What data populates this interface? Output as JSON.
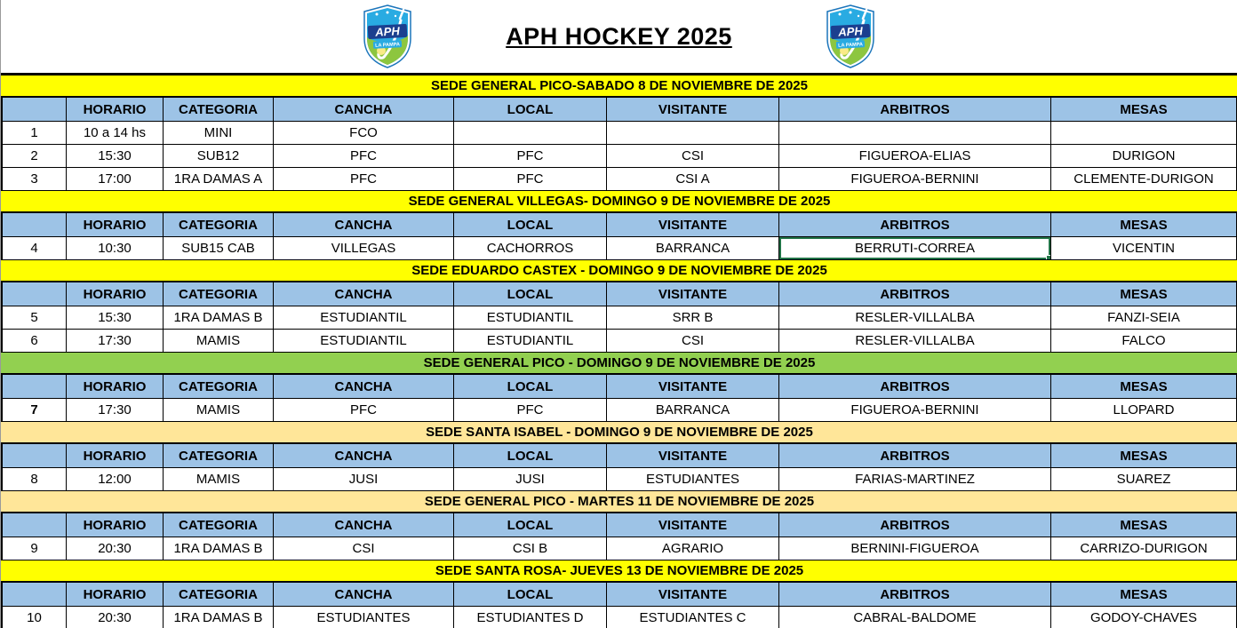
{
  "title": "APH HOCKEY 2025",
  "logo": {
    "text": "APH",
    "subtext": "LA PAMPA"
  },
  "colors": {
    "column_header_blue": "#9DC3E6",
    "section_yellow": "#FFFF00",
    "section_green": "#92D050",
    "section_tan": "#FFE699",
    "selection_border_green": "#217346"
  },
  "columns": [
    "",
    "HORARIO",
    "CATEGORIA",
    "CANCHA",
    "LOCAL",
    "VISITANTE",
    "ARBITROS",
    "MESAS"
  ],
  "sections": [
    {
      "title": "SEDE GENERAL PICO-SABADO 8 DE NOVIEMBRE DE 2025",
      "color": "yellow",
      "rows": [
        {
          "num": "1",
          "horario": "10 a 14 hs",
          "categoria": "MINI",
          "cancha": "FCO",
          "local": "",
          "visitante": "",
          "arbitros": "",
          "mesas": ""
        },
        {
          "num": "2",
          "horario": "15:30",
          "categoria": "SUB12",
          "cancha": "PFC",
          "local": "PFC",
          "visitante": "CSI",
          "arbitros": "FIGUEROA-ELIAS",
          "mesas": "DURIGON"
        },
        {
          "num": "3",
          "horario": "17:00",
          "categoria": "1RA DAMAS A",
          "cancha": "PFC",
          "local": "PFC",
          "visitante": "CSI A",
          "arbitros": "FIGUEROA-BERNINI",
          "mesas": "CLEMENTE-DURIGON"
        }
      ]
    },
    {
      "title": "SEDE GENERAL VILLEGAS- DOMINGO 9 DE NOVIEMBRE DE 2025",
      "color": "yellow",
      "rows": [
        {
          "num": "4",
          "horario": "10:30",
          "categoria": "SUB15 CAB",
          "cancha": "VILLEGAS",
          "local": "CACHORROS",
          "visitante": "BARRANCA",
          "arbitros": "BERRUTI-CORREA",
          "mesas": "VICENTIN",
          "selected": "arbitros"
        }
      ]
    },
    {
      "title": "SEDE EDUARDO CASTEX - DOMINGO 9 DE NOVIEMBRE DE 2025",
      "color": "yellow",
      "rows": [
        {
          "num": "5",
          "horario": "15:30",
          "categoria": "1RA DAMAS B",
          "cancha": "ESTUDIANTIL",
          "local": "ESTUDIANTIL",
          "visitante": "SRR B",
          "arbitros": "RESLER-VILLALBA",
          "mesas": "FANZI-SEIA"
        },
        {
          "num": "6",
          "horario": "17:30",
          "categoria": "MAMIS",
          "cancha": "ESTUDIANTIL",
          "local": "ESTUDIANTIL",
          "visitante": "CSI",
          "arbitros": "RESLER-VILLALBA",
          "mesas": "FALCO"
        }
      ]
    },
    {
      "title": "SEDE GENERAL PICO - DOMINGO 9 DE NOVIEMBRE DE 2025",
      "color": "green",
      "rows": [
        {
          "num": "7",
          "bold_num": true,
          "horario": "17:30",
          "categoria": "MAMIS",
          "cancha": "PFC",
          "local": "PFC",
          "visitante": "BARRANCA",
          "arbitros": "FIGUEROA-BERNINI",
          "mesas": "LLOPARD"
        }
      ]
    },
    {
      "title": "SEDE SANTA ISABEL - DOMINGO 9 DE NOVIEMBRE DE 2025",
      "color": "tan",
      "rows": [
        {
          "num": "8",
          "horario": "12:00",
          "categoria": "MAMIS",
          "cancha": "JUSI",
          "local": "JUSI",
          "visitante": "ESTUDIANTES",
          "arbitros": "FARIAS-MARTINEZ",
          "mesas": "SUAREZ"
        }
      ]
    },
    {
      "title": "SEDE GENERAL PICO - MARTES 11 DE NOVIEMBRE DE 2025",
      "color": "tan",
      "rows": [
        {
          "num": "9",
          "horario": "20:30",
          "categoria": "1RA DAMAS B",
          "cancha": "CSI",
          "local": "CSI B",
          "visitante": "AGRARIO",
          "arbitros": "BERNINI-FIGUEROA",
          "mesas": "CARRIZO-DURIGON"
        }
      ]
    },
    {
      "title": "SEDE SANTA ROSA- JUEVES 13 DE NOVIEMBRE DE 2025",
      "color": "yellow",
      "rows": [
        {
          "num": "10",
          "horario": "20:30",
          "categoria": "1RA DAMAS B",
          "cancha": "ESTUDIANTES",
          "local": "ESTUDIANTES D",
          "visitante": "ESTUDIANTES C",
          "arbitros": "CABRAL-BALDOME",
          "mesas": "GODOY-CHAVES"
        }
      ]
    }
  ]
}
